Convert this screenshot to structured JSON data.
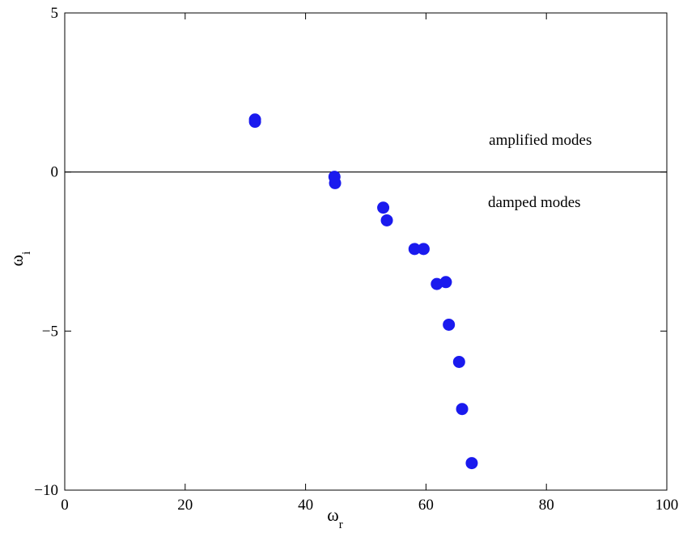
{
  "chart_data": {
    "type": "scatter",
    "title": "",
    "xlabel": "ω",
    "xlabel_sub": "r",
    "ylabel": "ω",
    "ylabel_sub": "i",
    "xlim": [
      0,
      100
    ],
    "ylim": [
      -10,
      5
    ],
    "xticks": [
      0,
      20,
      40,
      60,
      80,
      100
    ],
    "yticks": [
      -10,
      -5,
      0,
      5
    ],
    "xtick_labels": [
      "0",
      "20",
      "40",
      "60",
      "80",
      "100"
    ],
    "ytick_labels": [
      "−10",
      "−5",
      "0",
      "5"
    ],
    "grid": false,
    "legend": false,
    "reference_line": {
      "y": 0
    },
    "annotations": [
      {
        "text": "amplified modes",
        "x": 79,
        "y": 0.85
      },
      {
        "text": "damped modes",
        "x": 78,
        "y": -1.1
      }
    ],
    "series": [
      {
        "color": "#1a1aee",
        "points": [
          {
            "x": 31.6,
            "y": 1.65
          },
          {
            "x": 31.6,
            "y": 1.58
          },
          {
            "x": 44.8,
            "y": -0.15
          },
          {
            "x": 44.9,
            "y": -0.35
          },
          {
            "x": 52.9,
            "y": -1.12
          },
          {
            "x": 53.5,
            "y": -1.52
          },
          {
            "x": 58.1,
            "y": -2.42
          },
          {
            "x": 59.6,
            "y": -2.42
          },
          {
            "x": 61.8,
            "y": -3.52
          },
          {
            "x": 63.3,
            "y": -3.46
          },
          {
            "x": 63.8,
            "y": -4.8
          },
          {
            "x": 65.5,
            "y": -5.97
          },
          {
            "x": 66.0,
            "y": -7.45
          },
          {
            "x": 67.6,
            "y": -9.15
          }
        ]
      }
    ]
  }
}
